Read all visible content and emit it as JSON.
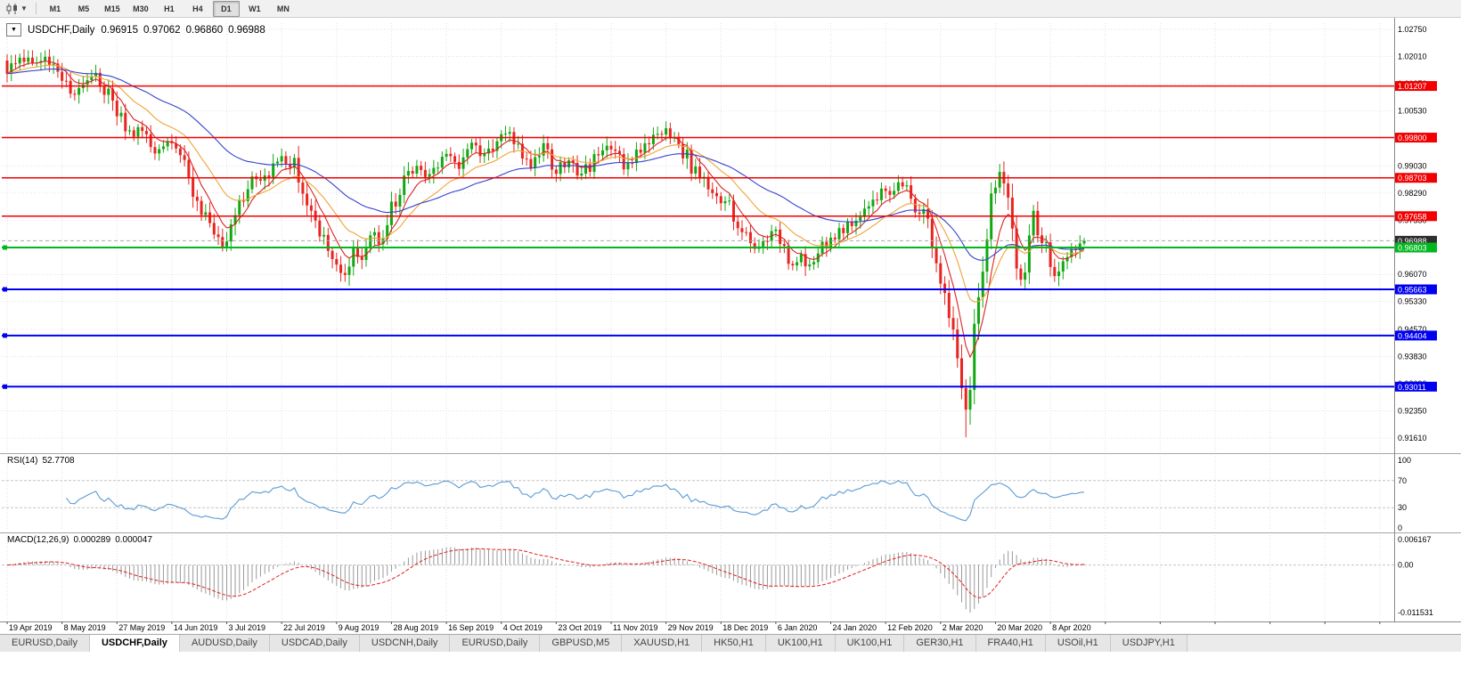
{
  "toolbar": {
    "chart_type_tooltip": "Candlesticks",
    "timeframes": [
      {
        "label": "M1"
      },
      {
        "label": "M5"
      },
      {
        "label": "M15"
      },
      {
        "label": "M30"
      },
      {
        "label": "H1"
      },
      {
        "label": "H4"
      },
      {
        "label": "D1",
        "active": true
      },
      {
        "label": "W1"
      },
      {
        "label": "MN"
      }
    ]
  },
  "chart": {
    "symbol_header": {
      "name": "USDCHF,Daily",
      "open": "0.96915",
      "high": "0.97062",
      "low": "0.96860",
      "close": "0.96988"
    }
  },
  "chart_data": {
    "type": "candlestick",
    "symbol": "USDCHF",
    "timeframe": "Daily",
    "num_candles": 256,
    "candles_per_label": 13,
    "x_labels": [
      "19 Apr 2019",
      "8 May 2019",
      "27 May 2019",
      "14 Jun 2019",
      "3 Jul 2019",
      "22 Jul 2019",
      "9 Aug 2019",
      "28 Aug 2019",
      "16 Sep 2019",
      "4 Oct 2019",
      "23 Oct 2019",
      "11 Nov 2019",
      "29 Nov 2019",
      "18 Dec 2019",
      "6 Jan 2020",
      "24 Jan 2020",
      "12 Feb 2020",
      "2 Mar 2020",
      "20 Mar 2020",
      "8 Apr 2020"
    ],
    "y_ticks": [
      "1.02750",
      "1.02010",
      "1.01270",
      "1.00530",
      "0.99790",
      "0.99030",
      "0.98290",
      "0.97550",
      "0.96810",
      "0.96070",
      "0.95330",
      "0.94570",
      "0.93830",
      "0.93090",
      "0.92350",
      "0.91610"
    ],
    "y_range": [
      0.9161,
      1.0275
    ],
    "colors": {
      "up": "#11a811",
      "down": "#e82520",
      "grid": "#e2e2e2",
      "axis": "#8a8a8a"
    },
    "horizontal_lines": [
      {
        "value": 1.01207,
        "label": "1.01207",
        "color": "#f20000",
        "width": 1.5,
        "handle": false
      },
      {
        "value": 0.998,
        "label": "0.99800",
        "color": "#f20000",
        "width": 1.5,
        "handle": false
      },
      {
        "value": 0.98703,
        "label": "0.98703",
        "color": "#f20000",
        "width": 1.5,
        "handle": false
      },
      {
        "value": 0.97658,
        "label": "0.97658",
        "color": "#f20000",
        "width": 1.5,
        "handle": false
      },
      {
        "value": 0.96803,
        "label": "0.96803",
        "color": "#00b81e",
        "width": 2,
        "handle": true
      },
      {
        "value": 0.95663,
        "label": "0.95663",
        "color": "#0000f0",
        "width": 2,
        "handle": true
      },
      {
        "value": 0.94404,
        "label": "0.94404",
        "color": "#0000f0",
        "width": 2,
        "handle": true
      },
      {
        "value": 0.93011,
        "label": "0.93011",
        "color": "#0000f0",
        "width": 2,
        "handle": true
      }
    ],
    "current_price": {
      "value": 0.96988,
      "label": "0.96988",
      "line_color": "#a8a8a8",
      "badge_color": "#2f2f2f"
    },
    "last_candle": {
      "open": 0.96915,
      "high": 0.97062,
      "low": 0.9686,
      "close": 0.96988
    },
    "close_path_anchors": [
      [
        0,
        1.0165
      ],
      [
        3,
        1.0195
      ],
      [
        6,
        1.018
      ],
      [
        9,
        1.0205
      ],
      [
        12,
        1.015
      ],
      [
        13,
        1.014
      ],
      [
        15,
        1.0085
      ],
      [
        18,
        1.0125
      ],
      [
        21,
        1.0148
      ],
      [
        24,
        1.0098
      ],
      [
        26,
        1.0048
      ],
      [
        29,
        0.9988
      ],
      [
        32,
        1.0005
      ],
      [
        35,
        0.9945
      ],
      [
        39,
        0.9968
      ],
      [
        42,
        0.9935
      ],
      [
        45,
        0.9808
      ],
      [
        48,
        0.975
      ],
      [
        51,
        0.969
      ],
      [
        53,
        0.9745
      ],
      [
        56,
        0.983
      ],
      [
        58,
        0.9885
      ],
      [
        61,
        0.9868
      ],
      [
        64,
        0.9925
      ],
      [
        66,
        0.9898
      ],
      [
        68,
        0.9925
      ],
      [
        70,
        0.9845
      ],
      [
        73,
        0.9745
      ],
      [
        76,
        0.9668
      ],
      [
        78,
        0.9635
      ],
      [
        80,
        0.9618
      ],
      [
        82,
        0.9678
      ],
      [
        84,
        0.9648
      ],
      [
        86,
        0.9718
      ],
      [
        88,
        0.9688
      ],
      [
        91,
        0.9782
      ],
      [
        94,
        0.9858
      ],
      [
        97,
        0.9898
      ],
      [
        100,
        0.9872
      ],
      [
        104,
        0.9928
      ],
      [
        107,
        0.9902
      ],
      [
        110,
        0.9958
      ],
      [
        113,
        0.9925
      ],
      [
        116,
        0.9985
      ],
      [
        118,
        0.9998
      ],
      [
        121,
        0.9945
      ],
      [
        124,
        0.9908
      ],
      [
        127,
        0.9955
      ],
      [
        130,
        0.9892
      ],
      [
        133,
        0.9928
      ],
      [
        136,
        0.9878
      ],
      [
        139,
        0.9918
      ],
      [
        143,
        0.9958
      ],
      [
        146,
        0.9892
      ],
      [
        149,
        0.9932
      ],
      [
        152,
        0.9975
      ],
      [
        156,
        0.9998
      ],
      [
        159,
        0.9968
      ],
      [
        162,
        0.9902
      ],
      [
        165,
        0.9862
      ],
      [
        168,
        0.9812
      ],
      [
        171,
        0.9795
      ],
      [
        174,
        0.973
      ],
      [
        177,
        0.9688
      ],
      [
        180,
        0.9705
      ],
      [
        182,
        0.9718
      ],
      [
        184,
        0.9678
      ],
      [
        186,
        0.9632
      ],
      [
        188,
        0.9662
      ],
      [
        190,
        0.9625
      ],
      [
        192,
        0.9678
      ],
      [
        195,
        0.9702
      ],
      [
        198,
        0.973
      ],
      [
        201,
        0.9762
      ],
      [
        204,
        0.9795
      ],
      [
        207,
        0.9832
      ],
      [
        209,
        0.982
      ],
      [
        211,
        0.9848
      ],
      [
        213,
        0.9838
      ],
      [
        215,
        0.9795
      ],
      [
        217,
        0.9772
      ],
      [
        219,
        0.9688
      ],
      [
        221,
        0.959
      ],
      [
        223,
        0.949
      ],
      [
        225,
        0.936
      ],
      [
        227,
        0.923
      ],
      [
        229,
        0.9465
      ],
      [
        231,
        0.9635
      ],
      [
        233,
        0.98
      ],
      [
        235,
        0.9885
      ],
      [
        237,
        0.9795
      ],
      [
        239,
        0.964
      ],
      [
        240,
        0.9592
      ],
      [
        242,
        0.97
      ],
      [
        243,
        0.9768
      ],
      [
        245,
        0.9712
      ],
      [
        247,
        0.9645
      ],
      [
        248,
        0.9608
      ],
      [
        250,
        0.9652
      ],
      [
        252,
        0.9682
      ],
      [
        253,
        0.9672
      ],
      [
        254,
        0.9692
      ],
      [
        255,
        0.96988
      ]
    ],
    "moving_averages": [
      {
        "period": 7,
        "color": "#dd2222",
        "method": "ema"
      },
      {
        "period": 18,
        "color": "#efa437",
        "method": "ema"
      },
      {
        "period": 45,
        "color": "#3344cc",
        "method": "ema"
      }
    ],
    "rsi": {
      "label": "RSI(14)",
      "value": "52.7708",
      "period": 14,
      "levels": [
        100,
        70,
        30,
        0
      ],
      "level_lines": [
        70,
        30
      ],
      "color": "#5a9bd4"
    },
    "macd": {
      "label": "MACD(12,26,9)",
      "main_value": "0.000289",
      "signal_value": "0.000047",
      "scale_ticks": [
        "0.006167",
        "0.00",
        "-0.011531"
      ],
      "scale": [
        -0.011531,
        0.006167
      ],
      "histogram_color": "#9a9a9a",
      "signal_color": "#e02020"
    }
  },
  "tabs": {
    "items": [
      "EURUSD,Daily",
      "USDCHF,Daily",
      "AUDUSD,Daily",
      "USDCAD,Daily",
      "USDCNH,Daily",
      "EURUSD,Daily",
      "GBPUSD,M5",
      "XAUUSD,H1",
      "HK50,H1",
      "UK100,H1",
      "UK100,H1",
      "GER30,H1",
      "FRA40,H1",
      "USOil,H1",
      "USDJPY,H1"
    ],
    "active_index": 1
  }
}
